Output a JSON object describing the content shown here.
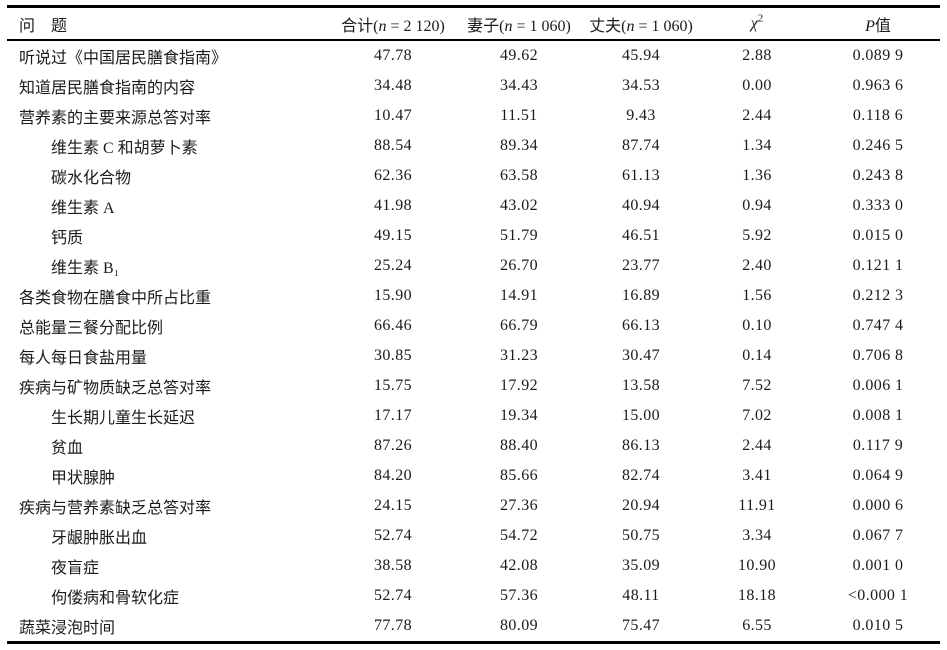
{
  "table": {
    "header": {
      "question": "问　题",
      "total_prefix": "合计(",
      "total_n": "n",
      "total_suffix": " = 2 120)",
      "wife_prefix": "妻子(",
      "wife_n": "n",
      "wife_suffix": " = 1 060)",
      "husband_prefix": "丈夫(",
      "husband_n": "n",
      "husband_suffix": " = 1 060)",
      "chi_base": "χ",
      "chi_sup": "2",
      "p_italic": "P",
      "p_label": "值"
    },
    "rows": [
      {
        "label": "听说过《中国居民膳食指南》",
        "indent": false,
        "total": "47.78",
        "wife": "49.62",
        "husband": "45.94",
        "chi2": "2.88",
        "p": "0.089 9"
      },
      {
        "label": "知道居民膳食指南的内容",
        "indent": false,
        "total": "34.48",
        "wife": "34.43",
        "husband": "34.53",
        "chi2": "0.00",
        "p": "0.963 6"
      },
      {
        "label": "营养素的主要来源总答对率",
        "indent": false,
        "total": "10.47",
        "wife": "11.51",
        "husband": "9.43",
        "chi2": "2.44",
        "p": "0.118 6"
      },
      {
        "label": "维生素 C 和胡萝卜素",
        "indent": true,
        "total": "88.54",
        "wife": "89.34",
        "husband": "87.74",
        "chi2": "1.34",
        "p": "0.246 5"
      },
      {
        "label": "碳水化合物",
        "indent": true,
        "total": "62.36",
        "wife": "63.58",
        "husband": "61.13",
        "chi2": "1.36",
        "p": "0.243 8"
      },
      {
        "label": "维生素 A",
        "indent": true,
        "total": "41.98",
        "wife": "43.02",
        "husband": "40.94",
        "chi2": "0.94",
        "p": "0.333 0"
      },
      {
        "label": "钙质",
        "indent": true,
        "total": "49.15",
        "wife": "51.79",
        "husband": "46.51",
        "chi2": "5.92",
        "p": "0.015 0"
      },
      {
        "label": "维生素 B₁",
        "indent": true,
        "total": "25.24",
        "wife": "26.70",
        "husband": "23.77",
        "chi2": "2.40",
        "p": "0.121 1"
      },
      {
        "label": "各类食物在膳食中所占比重",
        "indent": false,
        "total": "15.90",
        "wife": "14.91",
        "husband": "16.89",
        "chi2": "1.56",
        "p": "0.212 3"
      },
      {
        "label": "总能量三餐分配比例",
        "indent": false,
        "total": "66.46",
        "wife": "66.79",
        "husband": "66.13",
        "chi2": "0.10",
        "p": "0.747 4"
      },
      {
        "label": "每人每日食盐用量",
        "indent": false,
        "total": "30.85",
        "wife": "31.23",
        "husband": "30.47",
        "chi2": "0.14",
        "p": "0.706 8"
      },
      {
        "label": "疾病与矿物质缺乏总答对率",
        "indent": false,
        "total": "15.75",
        "wife": "17.92",
        "husband": "13.58",
        "chi2": "7.52",
        "p": "0.006 1"
      },
      {
        "label": "生长期儿童生长延迟",
        "indent": true,
        "total": "17.17",
        "wife": "19.34",
        "husband": "15.00",
        "chi2": "7.02",
        "p": "0.008 1"
      },
      {
        "label": "贫血",
        "indent": true,
        "total": "87.26",
        "wife": "88.40",
        "husband": "86.13",
        "chi2": "2.44",
        "p": "0.117 9"
      },
      {
        "label": "甲状腺肿",
        "indent": true,
        "total": "84.20",
        "wife": "85.66",
        "husband": "82.74",
        "chi2": "3.41",
        "p": "0.064 9"
      },
      {
        "label": "疾病与营养素缺乏总答对率",
        "indent": false,
        "total": "24.15",
        "wife": "27.36",
        "husband": "20.94",
        "chi2": "11.91",
        "p": "0.000 6"
      },
      {
        "label": "牙龈肿胀出血",
        "indent": true,
        "total": "52.74",
        "wife": "54.72",
        "husband": "50.75",
        "chi2": "3.34",
        "p": "0.067 7"
      },
      {
        "label": "夜盲症",
        "indent": true,
        "total": "38.58",
        "wife": "42.08",
        "husband": "35.09",
        "chi2": "10.90",
        "p": "0.001 0"
      },
      {
        "label": "佝偻病和骨软化症",
        "indent": true,
        "total": "52.74",
        "wife": "57.36",
        "husband": "48.11",
        "chi2": "18.18",
        "p": "<0.000 1"
      },
      {
        "label": "蔬菜浸泡时间",
        "indent": false,
        "total": "77.78",
        "wife": "80.09",
        "husband": "75.47",
        "chi2": "6.55",
        "p": "0.010 5"
      }
    ]
  }
}
